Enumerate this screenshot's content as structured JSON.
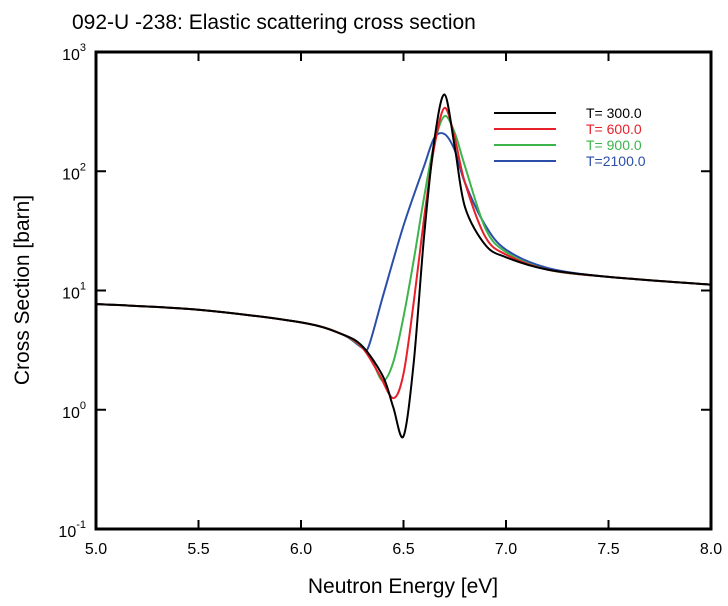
{
  "chart_data": {
    "type": "line",
    "title": "092-U -238:  Elastic scattering cross section",
    "xlabel": "Neutron Energy [eV]",
    "ylabel": "Cross Section [barn]",
    "xlim": [
      5.0,
      8.0
    ],
    "ylim": [
      0.1,
      1000
    ],
    "yscale": "log",
    "grid": false,
    "legend_position": "top-right",
    "x_ticks": [
      "5.0",
      "5.5",
      "6.0",
      "6.5",
      "7.0",
      "7.5",
      "8.0"
    ],
    "y_ticks": [
      {
        "base": "10",
        "exp": "-1"
      },
      {
        "base": "10",
        "exp": "0"
      },
      {
        "base": "10",
        "exp": "1"
      },
      {
        "base": "10",
        "exp": "2"
      },
      {
        "base": "10",
        "exp": "3"
      }
    ],
    "series": [
      {
        "name": "T= 300.0",
        "color": "#000000",
        "x": [
          5.0,
          5.5,
          6.0,
          6.2,
          6.3,
          6.4,
          6.45,
          6.5,
          6.55,
          6.6,
          6.65,
          6.7,
          6.75,
          6.8,
          6.9,
          7.0,
          7.2,
          7.5,
          8.0
        ],
        "y": [
          7.7,
          6.9,
          5.4,
          4.3,
          3.4,
          1.9,
          1.05,
          0.6,
          2.5,
          28,
          180,
          440,
          160,
          50,
          24,
          19,
          15,
          13,
          11.2
        ]
      },
      {
        "name": "T= 600.0",
        "color": "#e8202a",
        "x": [
          5.0,
          5.5,
          6.0,
          6.2,
          6.3,
          6.38,
          6.45,
          6.5,
          6.55,
          6.6,
          6.65,
          6.7,
          6.75,
          6.8,
          6.9,
          7.0,
          7.2,
          7.5,
          8.0
        ],
        "y": [
          7.7,
          6.9,
          5.4,
          4.3,
          3.3,
          2.0,
          1.25,
          2.0,
          8,
          40,
          160,
          340,
          190,
          80,
          28,
          20,
          15,
          13,
          11.2
        ]
      },
      {
        "name": "T= 900.0",
        "color": "#3cb44b",
        "x": [
          5.0,
          5.5,
          6.0,
          6.2,
          6.3,
          6.35,
          6.4,
          6.45,
          6.5,
          6.55,
          6.6,
          6.65,
          6.7,
          6.75,
          6.8,
          6.9,
          7.0,
          7.2,
          7.5,
          8.0
        ],
        "y": [
          7.7,
          6.9,
          5.4,
          4.3,
          3.3,
          2.5,
          1.75,
          2.5,
          6,
          18,
          60,
          170,
          290,
          210,
          110,
          33,
          21,
          15,
          13,
          11.2
        ]
      },
      {
        "name": "T=2100.0",
        "color": "#2b4ea8",
        "x": [
          5.0,
          5.5,
          6.0,
          6.2,
          6.3,
          6.33,
          6.4,
          6.5,
          6.6,
          6.65,
          6.7,
          6.75,
          6.8,
          6.9,
          7.0,
          7.2,
          7.5,
          8.0
        ],
        "y": [
          7.7,
          6.9,
          5.4,
          4.3,
          3.3,
          3.4,
          9,
          35,
          110,
          190,
          205,
          150,
          80,
          35,
          22,
          15.5,
          13,
          11.2
        ]
      }
    ]
  }
}
